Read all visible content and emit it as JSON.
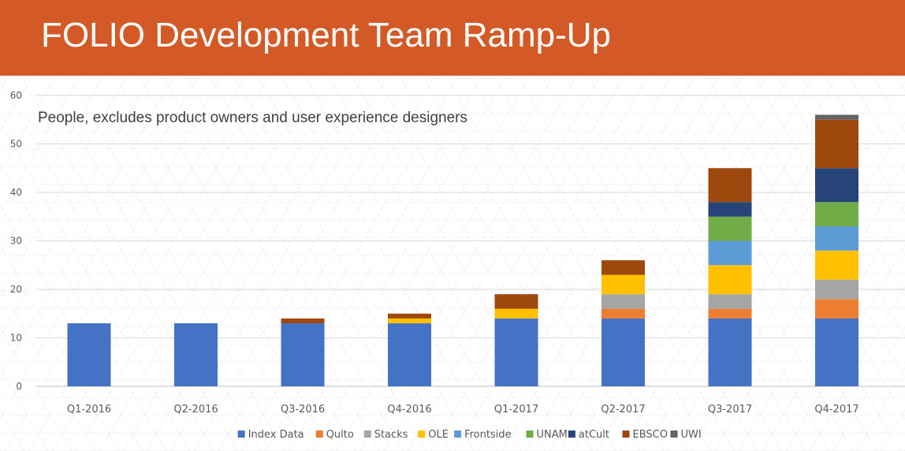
{
  "header": {
    "title": "FOLIO Development Team Ramp-Up"
  },
  "chart_data": {
    "type": "bar",
    "stacked": true,
    "title": "",
    "subtitle": "People, excludes product owners and user experience designers",
    "xlabel": "",
    "ylabel": "",
    "ylim": [
      0,
      60
    ],
    "y_ticks": [
      0,
      10,
      20,
      30,
      40,
      50,
      60
    ],
    "grid": true,
    "legend_position": "bottom",
    "categories": [
      "Q1-2016",
      "Q2-2016",
      "Q3-2016",
      "Q4-2016",
      "Q1-2017",
      "Q2-2017",
      "Q3-2017",
      "Q4-2017"
    ],
    "series": [
      {
        "name": "Index Data",
        "color": "#4472c4",
        "values": [
          13,
          13,
          13,
          13,
          14,
          14,
          14,
          14
        ]
      },
      {
        "name": "Qulto",
        "color": "#ed7d31",
        "values": [
          0,
          0,
          0,
          0,
          0,
          2,
          2,
          4
        ]
      },
      {
        "name": "Stacks",
        "color": "#a5a5a5",
        "values": [
          0,
          0,
          0,
          0,
          0,
          3,
          3,
          4
        ]
      },
      {
        "name": "OLE",
        "color": "#ffc000",
        "values": [
          0,
          0,
          0,
          1,
          2,
          4,
          6,
          6
        ]
      },
      {
        "name": "Frontside",
        "color": "#5b9bd5",
        "values": [
          0,
          0,
          0,
          0,
          0,
          0,
          5,
          5
        ]
      },
      {
        "name": "UNAM",
        "color": "#70ad47",
        "values": [
          0,
          0,
          0,
          0,
          0,
          0,
          5,
          5
        ]
      },
      {
        "name": "atCult",
        "color": "#264478",
        "values": [
          0,
          0,
          0,
          0,
          0,
          0,
          3,
          7
        ]
      },
      {
        "name": "EBSCO",
        "color": "#9e480e",
        "values": [
          0,
          0,
          1,
          1,
          3,
          3,
          7,
          10
        ]
      },
      {
        "name": "UWI",
        "color": "#636363",
        "values": [
          0,
          0,
          0,
          0,
          0,
          0,
          0,
          1
        ]
      }
    ]
  }
}
